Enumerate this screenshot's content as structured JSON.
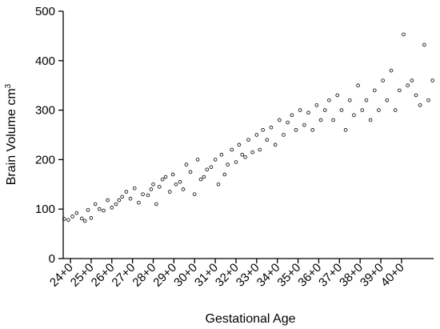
{
  "chart_data": {
    "type": "scatter",
    "xlabel": "Gestational Age",
    "ylabel": "Brain Volume cm",
    "ylabel_sup": "3",
    "x_categories": [
      "24+0",
      "25+0",
      "26+0",
      "27+0",
      "28+0",
      "29+0",
      "30+0",
      "31+0",
      "32+0",
      "33+0",
      "34+0",
      "35+0",
      "36+0",
      "37+0",
      "38+0",
      "39+0",
      "40+0"
    ],
    "xlim_weeks": [
      23.65,
      41.55
    ],
    "ylim": [
      0,
      500
    ],
    "yticks": [
      0,
      100,
      200,
      300,
      400,
      500
    ],
    "grid": false,
    "marker": "open-circle",
    "colors": {
      "marker": "#000000",
      "axis": "#000000"
    },
    "points": [
      [
        23.7,
        80
      ],
      [
        23.9,
        78
      ],
      [
        24.1,
        85
      ],
      [
        24.3,
        92
      ],
      [
        24.55,
        81
      ],
      [
        24.7,
        76
      ],
      [
        24.85,
        98
      ],
      [
        25.0,
        82
      ],
      [
        25.2,
        110
      ],
      [
        25.4,
        100
      ],
      [
        25.6,
        97
      ],
      [
        25.8,
        118
      ],
      [
        26.0,
        103
      ],
      [
        26.2,
        110
      ],
      [
        26.35,
        118
      ],
      [
        26.5,
        125
      ],
      [
        26.7,
        135
      ],
      [
        26.9,
        121
      ],
      [
        27.1,
        142
      ],
      [
        27.3,
        113
      ],
      [
        27.5,
        130
      ],
      [
        27.75,
        128
      ],
      [
        27.9,
        140
      ],
      [
        28.0,
        150
      ],
      [
        28.15,
        110
      ],
      [
        28.3,
        145
      ],
      [
        28.45,
        160
      ],
      [
        28.6,
        165
      ],
      [
        28.8,
        135
      ],
      [
        28.95,
        170
      ],
      [
        29.1,
        150
      ],
      [
        29.3,
        155
      ],
      [
        29.45,
        140
      ],
      [
        29.6,
        190
      ],
      [
        29.8,
        175
      ],
      [
        30.0,
        130
      ],
      [
        30.15,
        200
      ],
      [
        30.3,
        160
      ],
      [
        30.45,
        165
      ],
      [
        30.6,
        180
      ],
      [
        30.8,
        185
      ],
      [
        31.0,
        200
      ],
      [
        31.15,
        150
      ],
      [
        31.3,
        210
      ],
      [
        31.45,
        170
      ],
      [
        31.6,
        190
      ],
      [
        31.8,
        220
      ],
      [
        32.0,
        195
      ],
      [
        32.15,
        230
      ],
      [
        32.3,
        210
      ],
      [
        32.45,
        205
      ],
      [
        32.6,
        240
      ],
      [
        32.8,
        215
      ],
      [
        33.0,
        250
      ],
      [
        33.15,
        220
      ],
      [
        33.3,
        260
      ],
      [
        33.5,
        240
      ],
      [
        33.7,
        265
      ],
      [
        33.9,
        230
      ],
      [
        34.1,
        280
      ],
      [
        34.3,
        250
      ],
      [
        34.5,
        275
      ],
      [
        34.7,
        290
      ],
      [
        34.9,
        260
      ],
      [
        35.1,
        300
      ],
      [
        35.3,
        270
      ],
      [
        35.5,
        295
      ],
      [
        35.7,
        260
      ],
      [
        35.9,
        310
      ],
      [
        36.1,
        280
      ],
      [
        36.3,
        300
      ],
      [
        36.5,
        320
      ],
      [
        36.7,
        280
      ],
      [
        36.9,
        330
      ],
      [
        37.1,
        300
      ],
      [
        37.3,
        260
      ],
      [
        37.5,
        320
      ],
      [
        37.7,
        290
      ],
      [
        37.9,
        350
      ],
      [
        38.1,
        300
      ],
      [
        38.3,
        320
      ],
      [
        38.5,
        280
      ],
      [
        38.7,
        340
      ],
      [
        38.9,
        300
      ],
      [
        39.1,
        360
      ],
      [
        39.3,
        320
      ],
      [
        39.5,
        380
      ],
      [
        39.7,
        300
      ],
      [
        39.9,
        340
      ],
      [
        40.1,
        453
      ],
      [
        40.3,
        350
      ],
      [
        40.5,
        360
      ],
      [
        40.7,
        330
      ],
      [
        40.9,
        310
      ],
      [
        41.1,
        432
      ],
      [
        41.3,
        320
      ],
      [
        41.5,
        360
      ]
    ]
  }
}
